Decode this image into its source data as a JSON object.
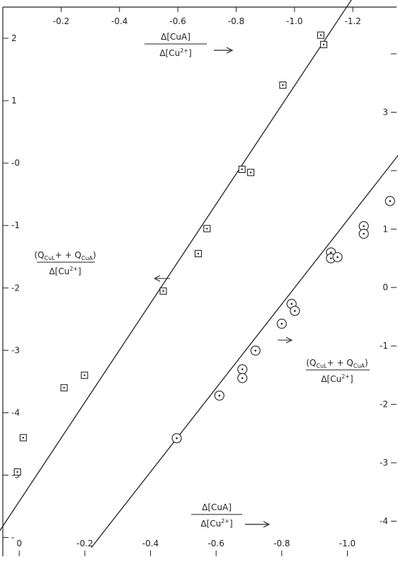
{
  "chart_data": {
    "type": "scatter",
    "title": "",
    "grid": false,
    "axes": {
      "top_x": {
        "ticks": [
          "-0.2",
          "-0.4",
          "-0.6",
          "-0.8",
          "-1.0",
          "-1.2"
        ],
        "label_num": "Δ[CuA]",
        "label_den_pre": "Δ[Cu",
        "label_den_sup": "2+",
        "label_den_post": "]",
        "range": [
          0.0,
          -1.35
        ]
      },
      "left_y": {
        "ticks": [
          "2",
          "1",
          "0",
          "-1",
          "-2",
          "-3",
          "-4",
          "-5",
          "-6"
        ],
        "tick_texts": [
          "2",
          "1",
          "-0",
          "-1",
          "-2",
          "-3",
          "-4",
          "-5",
          "-"
        ],
        "range": [
          -6.3,
          2.5
        ]
      },
      "bottom_x": {
        "ticks": [
          "0",
          "-0.2",
          "-0.4",
          "-0.6",
          "-0.8",
          "-1.0"
        ],
        "tick_texts": [
          "0",
          "-0.2",
          "-0.4",
          "-0.6",
          "-0.8",
          "-1.0"
        ],
        "label_num": "Δ[CuA]",
        "label_den_pre": "Δ[Cu",
        "label_den_sup": "2+",
        "label_den_post": "]",
        "range": [
          0.05,
          -1.15
        ]
      },
      "right_y": {
        "ticks": [
          "4",
          "3",
          "2",
          "1",
          "0",
          "-1",
          "-2",
          "-3",
          "-4"
        ],
        "tick_texts": [
          "",
          "3",
          "",
          "1",
          "0",
          "-1",
          "-2",
          "-3",
          "-4"
        ],
        "range": [
          -4.6,
          4.8
        ]
      }
    },
    "ylabel_left": {
      "num_open": "(Q",
      "num_sub1": "CuL",
      "num_mid": "+ + Q",
      "num_sub2": "CuA",
      "num_close": ")",
      "den_pre": "Δ[Cu",
      "den_sup": "2+",
      "den_post": "]"
    },
    "ylabel_right": {
      "num_open": "(Q",
      "num_sub1": "CuL",
      "num_mid": "+ + Q",
      "num_sub2": "CuA",
      "num_close": ")",
      "den_pre": "Δ[Cu",
      "den_sup": "2+",
      "den_post": "]"
    },
    "series": [
      {
        "marker": "square",
        "axes": "top-left",
        "x": [
          -0.05,
          -0.07,
          -0.21,
          -0.28,
          -0.55,
          -0.67,
          -0.7,
          -0.82,
          -0.85,
          -0.96,
          -1.09,
          -1.1
        ],
        "y": [
          -4.95,
          -4.4,
          -3.6,
          -3.4,
          -2.05,
          -1.45,
          -1.05,
          -0.1,
          -0.15,
          1.25,
          2.05,
          1.9
        ]
      },
      {
        "marker": "circle",
        "axes": "bottom-right",
        "x": [
          -0.48,
          -0.61,
          -0.68,
          -0.68,
          -0.72,
          -0.8,
          -0.83,
          -0.84,
          -0.95,
          -0.95,
          -0.97,
          -1.05,
          -1.05,
          -1.13
        ],
        "y": [
          -2.58,
          -1.85,
          -1.4,
          -1.55,
          -1.08,
          -0.62,
          -0.28,
          -0.4,
          0.6,
          0.5,
          0.52,
          1.05,
          0.92,
          1.48
        ]
      }
    ],
    "fit_lines": [
      {
        "axes": "top-left",
        "x": [
          0.04,
          -1.2
        ],
        "y": [
          -6.1,
          2.65
        ]
      },
      {
        "axes": "bottom-right",
        "x": [
          -0.22,
          -1.16
        ],
        "y": [
          -4.45,
          2.3
        ]
      }
    ]
  }
}
